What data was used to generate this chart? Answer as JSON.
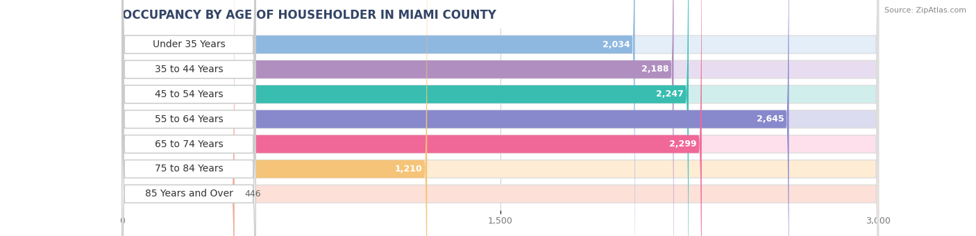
{
  "title": "OCCUPANCY BY AGE OF HOUSEHOLDER IN MIAMI COUNTY",
  "source": "Source: ZipAtlas.com",
  "categories": [
    "Under 35 Years",
    "35 to 44 Years",
    "45 to 54 Years",
    "55 to 64 Years",
    "65 to 74 Years",
    "75 to 84 Years",
    "85 Years and Over"
  ],
  "values": [
    2034,
    2188,
    2247,
    2645,
    2299,
    1210,
    446
  ],
  "bar_colors": [
    "#8eb8e0",
    "#b08fc0",
    "#38bdb0",
    "#8888cc",
    "#f06898",
    "#f5c478",
    "#f0a898"
  ],
  "bar_bg_colors": [
    "#e4eef8",
    "#e8ddf0",
    "#d0eeec",
    "#dcdcf0",
    "#fde0ec",
    "#feecd4",
    "#fde0d8"
  ],
  "xlim": [
    0,
    3000
  ],
  "xticks": [
    0,
    1500,
    3000
  ],
  "background_color": "#ffffff",
  "title_fontsize": 12,
  "label_fontsize": 10,
  "value_fontsize": 9
}
